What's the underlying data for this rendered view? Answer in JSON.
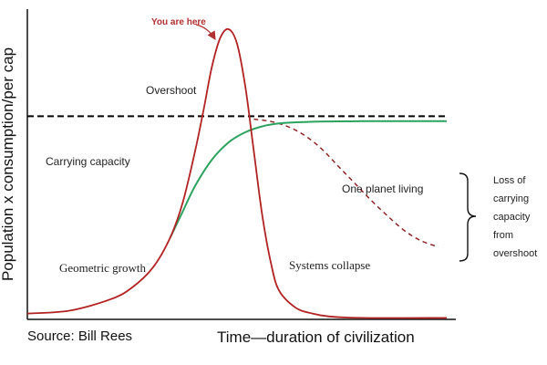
{
  "chart_data": {
    "type": "line",
    "title": "",
    "xlabel": "Time—duration of civilization",
    "ylabel": "Population x consumption/per cap",
    "grid": false,
    "series": [
      {
        "name": "Overshoot",
        "style": "solid",
        "color": "#b22222",
        "x": [
          0,
          10,
          20,
          25,
          30,
          34,
          37,
          40,
          42,
          44,
          46,
          48,
          50,
          52,
          54,
          56,
          58,
          60,
          64,
          68,
          72,
          80,
          100
        ],
        "y": [
          2,
          3,
          7,
          11,
          18,
          28,
          40,
          58,
          72,
          87,
          97,
          100,
          95,
          80,
          58,
          36,
          20,
          10,
          4,
          2,
          1,
          0.5,
          0.5
        ]
      },
      {
        "name": "One planet living",
        "style": "solid",
        "color": "#2ca25f",
        "x": [
          34,
          37,
          40,
          44,
          48,
          52,
          56,
          60,
          66,
          72,
          80,
          90,
          100
        ],
        "y": [
          28,
          37,
          46,
          55,
          61,
          64.5,
          66.5,
          67.5,
          68,
          68.2,
          68.3,
          68.3,
          68.3
        ]
      },
      {
        "name": "Loss of carrying capacity from overshoot",
        "style": "dashed",
        "color": "#8b1a1a",
        "x": [
          54,
          58,
          62,
          66,
          70,
          74,
          78,
          82,
          86,
          90,
          94,
          98
        ],
        "y": [
          69,
          68.2,
          66.5,
          63.5,
          59,
          53,
          47,
          41,
          35.5,
          30.5,
          27,
          25
        ]
      },
      {
        "name": "Carrying capacity",
        "style": "dashed",
        "color": "#000000",
        "x": [
          0,
          100
        ],
        "y": [
          70,
          70
        ]
      }
    ],
    "xlim": [
      0,
      100
    ],
    "ylim": [
      0,
      105
    ]
  },
  "annotations": {
    "you_are_here": "You are here",
    "overshoot": "Overshoot",
    "carrying_capacity": "Carrying capacity",
    "one_planet_living": "One planet living",
    "geometric_growth": "Geometric growth",
    "systems_collapse": "Systems collapse",
    "loss_of_capacity": [
      "Loss of",
      "carrying",
      "capacity",
      "from",
      "overshoot"
    ],
    "source": "Source: Bill Rees"
  }
}
